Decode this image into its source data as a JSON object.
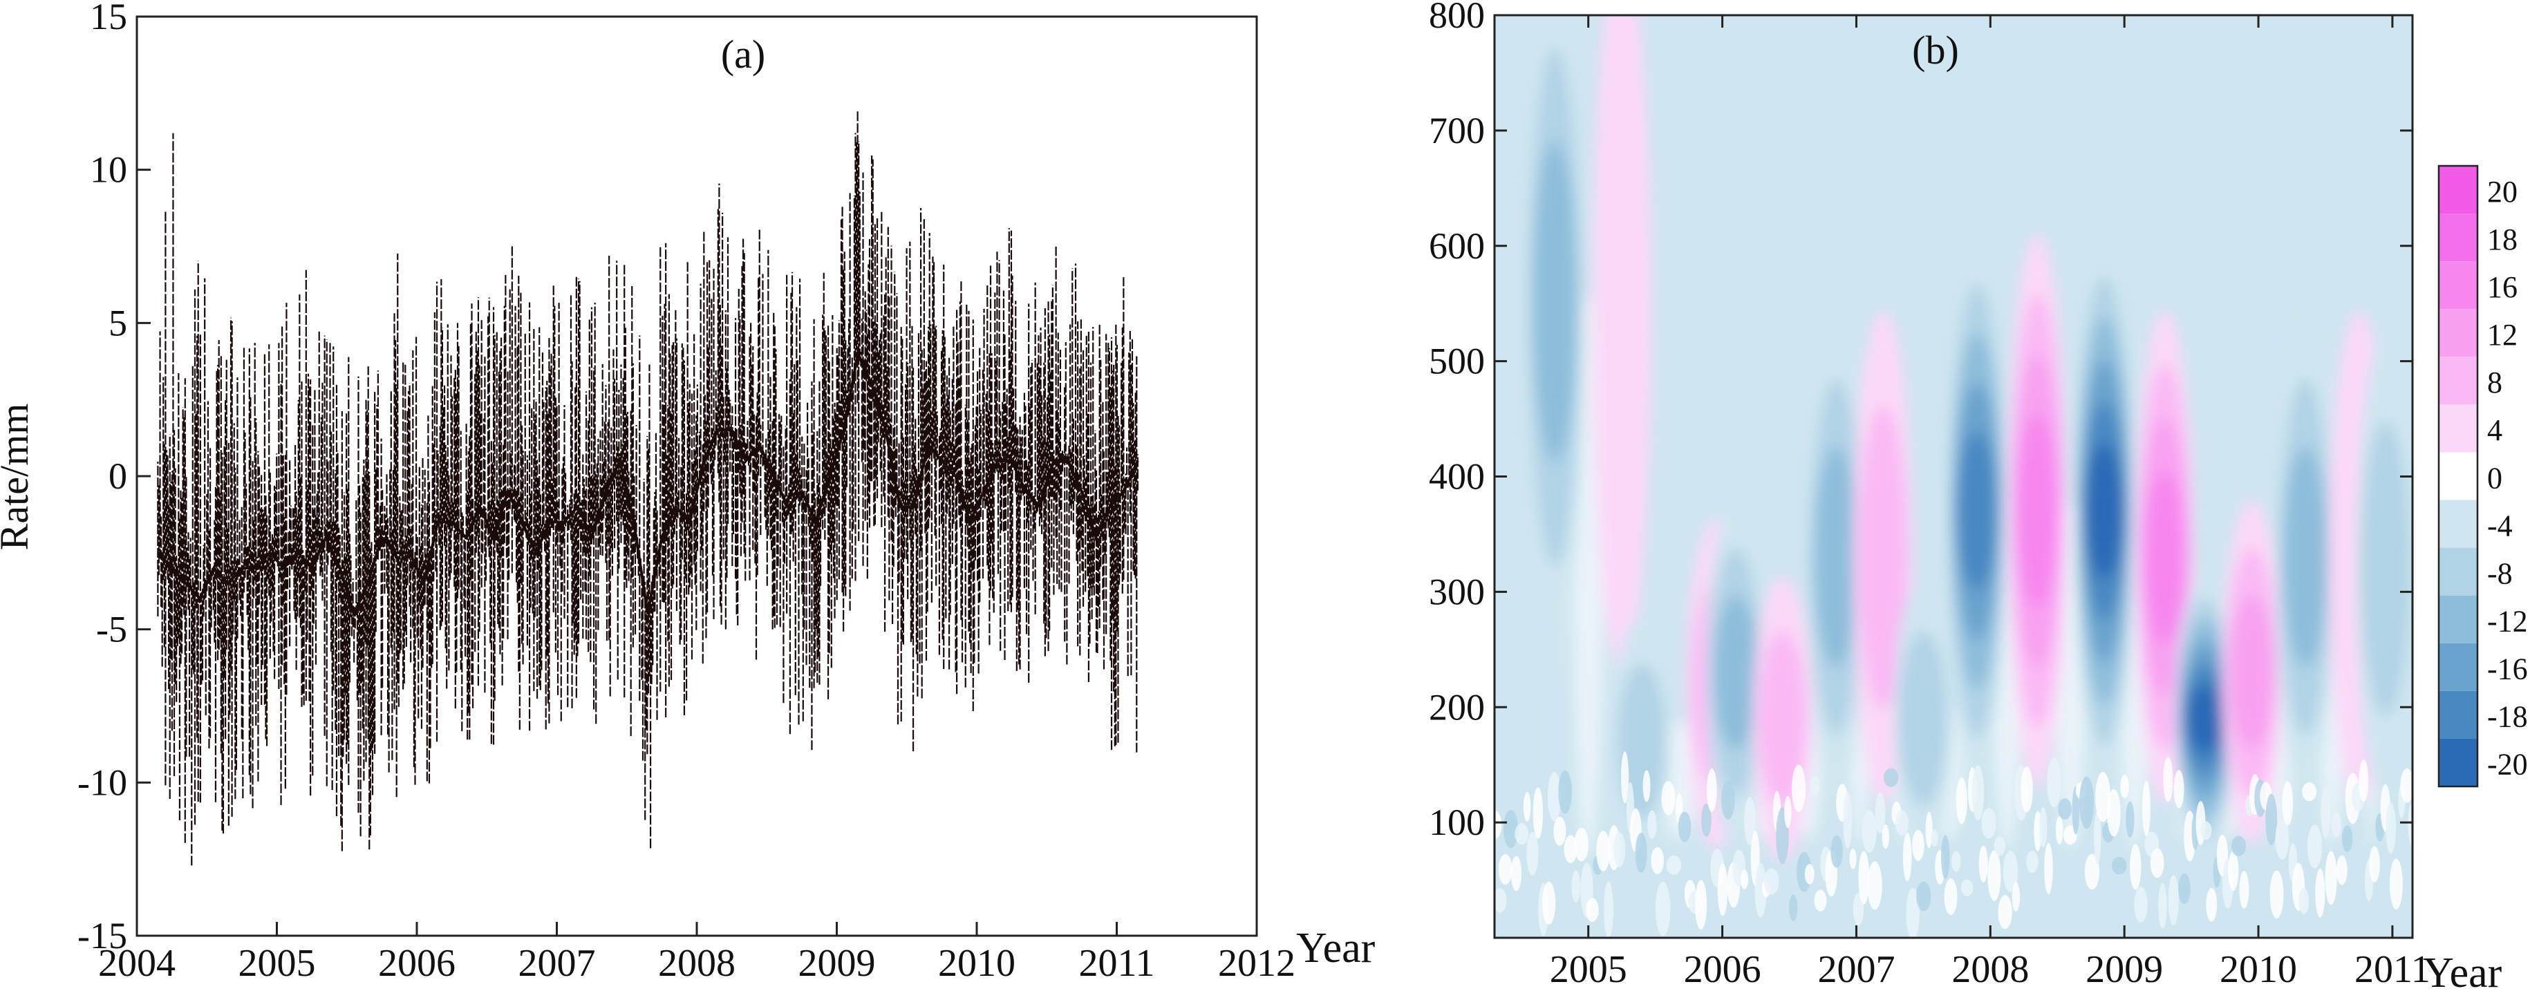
{
  "chart_data": [
    {
      "id": "a",
      "type": "line",
      "panel_label": "(a)",
      "title": "",
      "xlabel": "Year",
      "ylabel": "Rate/mm",
      "xlim": [
        2004,
        2012
      ],
      "ylim": [
        -15,
        15
      ],
      "x_ticks": [
        2004,
        2005,
        2006,
        2007,
        2008,
        2009,
        2010,
        2011,
        2012
      ],
      "y_ticks": [
        -15,
        -10,
        -5,
        0,
        5,
        10,
        15
      ],
      "grid": false,
      "legend": "none",
      "series_color": "#1a0a0a",
      "series": [
        {
          "x": [
            2004.15,
            2004.25,
            2004.35,
            2004.45,
            2004.55,
            2004.65,
            2004.75,
            2004.85,
            2004.95,
            2005.05,
            2005.15,
            2005.25,
            2005.35,
            2005.45,
            2005.55,
            2005.65,
            2005.75,
            2005.85,
            2005.95,
            2006.05,
            2006.15,
            2006.25,
            2006.35,
            2006.45,
            2006.55,
            2006.65,
            2006.75,
            2006.85,
            2006.95,
            2007.05,
            2007.15,
            2007.25,
            2007.35,
            2007.45,
            2007.55,
            2007.65,
            2007.75,
            2007.85,
            2007.95,
            2008.05,
            2008.15,
            2008.25,
            2008.35,
            2008.45,
            2008.55,
            2008.65,
            2008.75,
            2008.85,
            2008.95,
            2009.05,
            2009.15,
            2009.25,
            2009.35,
            2009.45,
            2009.55,
            2009.65,
            2009.75,
            2009.85,
            2009.95,
            2010.05,
            2010.15,
            2010.25,
            2010.35,
            2010.45,
            2010.55,
            2010.65,
            2010.75,
            2010.85,
            2010.95,
            2011.05,
            2011.15
          ],
          "y": [
            -2.5,
            -3.0,
            -3.5,
            -4.0,
            -3.0,
            -3.5,
            -3.0,
            -3.0,
            -2.5,
            -3.0,
            -2.5,
            -3.0,
            -2.0,
            -3.0,
            -4.5,
            -3.5,
            -2.0,
            -2.5,
            -2.5,
            -3.5,
            -1.5,
            -1.5,
            -2.0,
            -1.0,
            -2.0,
            -0.5,
            -1.5,
            -2.5,
            -1.5,
            -1.5,
            -1.0,
            -2.0,
            -0.5,
            0.5,
            -1.5,
            -4.5,
            -2.0,
            -1.0,
            -1.5,
            0.5,
            1.5,
            1.5,
            0.5,
            1.0,
            0.0,
            -1.0,
            -0.5,
            -1.5,
            0.0,
            1.5,
            4.0,
            3.0,
            1.5,
            -1.0,
            -1.0,
            1.0,
            0.5,
            0.0,
            -1.5,
            -0.5,
            0.5,
            0.5,
            -0.5,
            -1.0,
            0.5,
            0.5,
            -0.5,
            -2.0,
            -1.0,
            -0.5,
            0.5
          ],
          "range_low": [
            -9.0,
            -11.0,
            -12.5,
            -13.0,
            -12.0,
            -11.5,
            -12.0,
            -10.5,
            -10.0,
            -11.0,
            -9.5,
            -11.0,
            -10.0,
            -12.0,
            -13.5,
            -12.5,
            -9.5,
            -10.5,
            -10.0,
            -11.0,
            -8.5,
            -8.0,
            -9.0,
            -7.5,
            -9.0,
            -7.0,
            -8.5,
            -9.5,
            -8.0,
            -8.0,
            -7.5,
            -9.5,
            -7.5,
            -6.5,
            -9.0,
            -13.0,
            -9.0,
            -7.5,
            -8.0,
            -6.0,
            -5.0,
            -5.0,
            -6.5,
            -6.0,
            -7.0,
            -8.5,
            -8.0,
            -9.5,
            -7.0,
            -5.5,
            -3.0,
            -4.0,
            -5.5,
            -8.5,
            -9.0,
            -6.0,
            -6.5,
            -7.0,
            -8.5,
            -7.5,
            -6.0,
            -6.0,
            -7.0,
            -8.0,
            -6.5,
            -6.5,
            -7.5,
            -10.0,
            -9.0,
            -8.5,
            -9.5
          ],
          "range_high": [
            5.0,
            14.0,
            3.5,
            7.5,
            4.5,
            5.5,
            4.0,
            5.5,
            4.5,
            5.0,
            8.5,
            5.5,
            4.5,
            4.0,
            4.0,
            3.5,
            6.5,
            9.0,
            5.0,
            4.0,
            8.0,
            5.0,
            5.0,
            6.5,
            5.5,
            8.5,
            6.5,
            5.0,
            8.5,
            7.0,
            6.5,
            5.5,
            7.0,
            8.5,
            6.0,
            3.0,
            8.5,
            7.0,
            7.0,
            8.0,
            9.5,
            10.0,
            8.0,
            8.5,
            7.5,
            6.5,
            7.0,
            6.0,
            7.5,
            9.0,
            12.0,
            10.5,
            8.5,
            6.5,
            11.5,
            8.0,
            7.5,
            7.0,
            6.0,
            7.0,
            8.5,
            8.0,
            7.0,
            6.0,
            7.5,
            7.5,
            6.5,
            5.0,
            6.0,
            6.5,
            7.0
          ]
        }
      ]
    },
    {
      "id": "b",
      "type": "heatmap",
      "panel_label": "(b)",
      "title": "",
      "xlabel": "Year",
      "ylabel": "",
      "xlim": [
        2004.3,
        2011.15
      ],
      "ylim": [
        0,
        800
      ],
      "x_ticks": [
        2005,
        2006,
        2007,
        2008,
        2009,
        2010,
        2011
      ],
      "y_ticks": [
        100,
        200,
        300,
        400,
        500,
        600,
        700,
        800
      ],
      "colorbar_levels": [
        20,
        18,
        16,
        12,
        8,
        4,
        0,
        -4,
        -8,
        -12,
        -16,
        -18,
        -20
      ],
      "colorbar_colors": [
        "#f25be8",
        "#f56fec",
        "#f787ef",
        "#f8a1f1",
        "#fab9f4",
        "#fcd8f8",
        "#ffffff",
        "#cfe6f0",
        "#b1d3e6",
        "#8dbddb",
        "#6aa3ce",
        "#4a88c2",
        "#2c6bb6"
      ],
      "features": [
        {
          "kind": "negative",
          "x": 2004.75,
          "period": 560,
          "level": -12
        },
        {
          "kind": "positive",
          "x": 2005.25,
          "period": 560,
          "level": 4
        },
        {
          "kind": "negative",
          "x": 2005.4,
          "period": 170,
          "level": -8
        },
        {
          "kind": "positive",
          "x": 2005.95,
          "period": 220,
          "level": 8
        },
        {
          "kind": "negative",
          "x": 2006.1,
          "period": 230,
          "level": -12
        },
        {
          "kind": "positive",
          "x": 2006.45,
          "period": 190,
          "level": 8
        },
        {
          "kind": "negative",
          "x": 2006.85,
          "period": 330,
          "level": -12
        },
        {
          "kind": "positive",
          "x": 2007.2,
          "period": 330,
          "level": 8
        },
        {
          "kind": "negative",
          "x": 2007.5,
          "period": 190,
          "level": -8
        },
        {
          "kind": "negative",
          "x": 2007.9,
          "period": 370,
          "level": -18
        },
        {
          "kind": "positive",
          "x": 2008.35,
          "period": 370,
          "level": 16
        },
        {
          "kind": "negative",
          "x": 2008.85,
          "period": 370,
          "level": -20
        },
        {
          "kind": "positive",
          "x": 2009.3,
          "period": 330,
          "level": 16
        },
        {
          "kind": "negative",
          "x": 2009.6,
          "period": 190,
          "level": -20
        },
        {
          "kind": "positive",
          "x": 2009.95,
          "period": 230,
          "level": 12
        },
        {
          "kind": "negative",
          "x": 2010.35,
          "period": 330,
          "level": -12
        },
        {
          "kind": "positive",
          "x": 2010.75,
          "period": 330,
          "level": 4
        },
        {
          "kind": "negative",
          "x": 2010.95,
          "period": 320,
          "level": -8
        }
      ]
    }
  ]
}
